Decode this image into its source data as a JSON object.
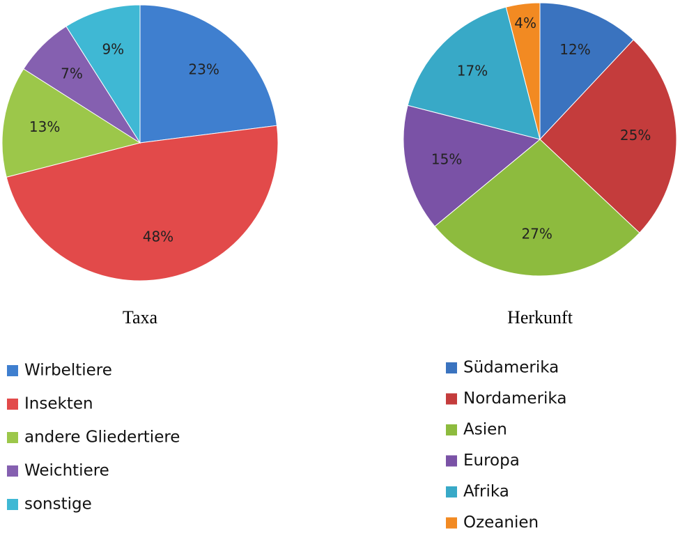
{
  "chart_data": [
    {
      "type": "pie",
      "title": "Taxa",
      "categories": [
        "Wirbeltiere",
        "Insekten",
        "andere Gliedertiere",
        "Weichtiere",
        "sonstige"
      ],
      "values": [
        23,
        48,
        13,
        7,
        9
      ],
      "value_labels": [
        "23%",
        "48%",
        "13%",
        "7%",
        "9%"
      ],
      "colors": [
        "#3f7fcf",
        "#e24a4a",
        "#9cc74a",
        "#8560b0",
        "#3fb8d4"
      ]
    },
    {
      "type": "pie",
      "title": "Herkunft",
      "categories": [
        "Südamerika",
        "Nordamerika",
        "Asien",
        "Europa",
        "Afrika",
        "Ozeanien"
      ],
      "values": [
        12,
        25,
        27,
        15,
        17,
        4
      ],
      "value_labels": [
        "12%",
        "25%",
        "27%",
        "15%",
        "17%",
        "4%"
      ],
      "colors": [
        "#3a73bf",
        "#c43c3c",
        "#8dbb3e",
        "#7a52a6",
        "#38a9c7",
        "#f28a22"
      ]
    }
  ]
}
